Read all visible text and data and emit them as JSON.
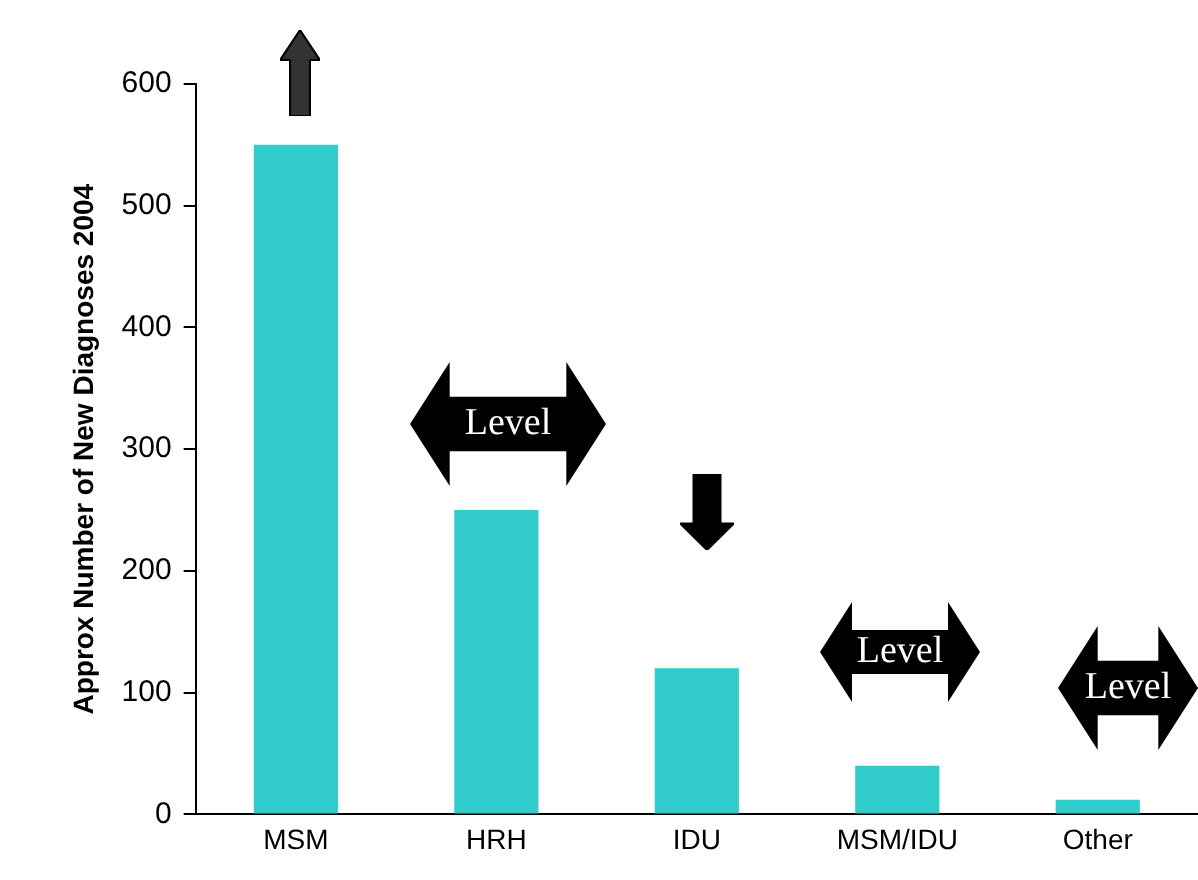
{
  "chart_data": {
    "type": "bar",
    "ylabel": "Approx Number of New Diagnoses 2004",
    "categories": [
      "MSM",
      "HRH",
      "IDU",
      "MSM/IDU",
      "Other"
    ],
    "values": [
      550,
      250,
      120,
      40,
      12
    ],
    "color": "#33cccc",
    "ylim": [
      0,
      600
    ],
    "yticks": [
      0,
      100,
      200,
      300,
      400,
      500,
      600
    ],
    "grid": false,
    "legend": false,
    "annotations": [
      "Level",
      "Level",
      "Level"
    ]
  }
}
